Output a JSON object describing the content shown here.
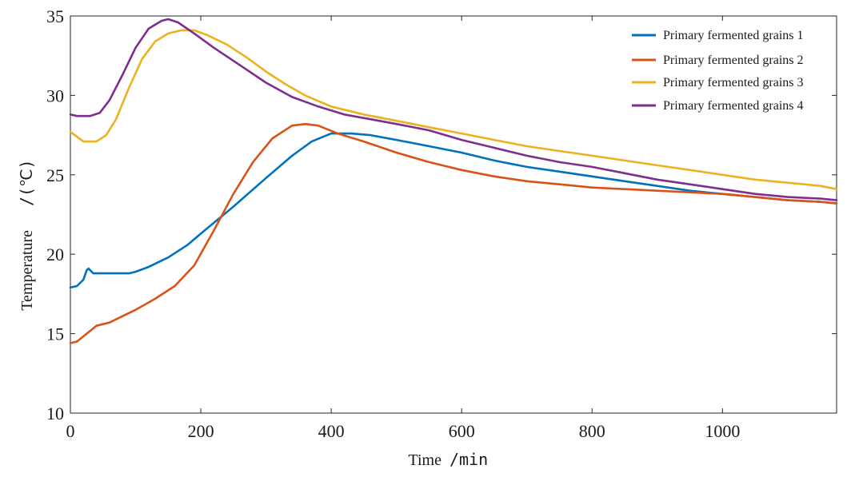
{
  "chart_data": {
    "type": "line",
    "title": "",
    "xlabel": "Time",
    "xunit": "/min",
    "ylabel": "Temperature",
    "yunit": "/(℃)",
    "xlim": [
      0,
      1175
    ],
    "ylim": [
      10,
      35
    ],
    "xticks": [
      0,
      200,
      400,
      600,
      800,
      1000
    ],
    "yticks": [
      10,
      15,
      20,
      25,
      30,
      35
    ],
    "grid": false,
    "legend_position": "top-right",
    "series": [
      {
        "name": "Primary fermented grains 1",
        "color": "#0072BD",
        "points": [
          [
            0,
            17.9
          ],
          [
            10,
            18.0
          ],
          [
            20,
            18.4
          ],
          [
            25,
            19.0
          ],
          [
            28,
            19.1
          ],
          [
            35,
            18.8
          ],
          [
            60,
            18.8
          ],
          [
            90,
            18.8
          ],
          [
            100,
            18.9
          ],
          [
            120,
            19.2
          ],
          [
            150,
            19.8
          ],
          [
            180,
            20.6
          ],
          [
            200,
            21.3
          ],
          [
            250,
            23.0
          ],
          [
            300,
            24.8
          ],
          [
            340,
            26.2
          ],
          [
            370,
            27.1
          ],
          [
            400,
            27.6
          ],
          [
            430,
            27.6
          ],
          [
            460,
            27.5
          ],
          [
            500,
            27.2
          ],
          [
            550,
            26.8
          ],
          [
            600,
            26.4
          ],
          [
            650,
            25.9
          ],
          [
            700,
            25.5
          ],
          [
            750,
            25.2
          ],
          [
            800,
            24.9
          ],
          [
            850,
            24.6
          ],
          [
            900,
            24.3
          ],
          [
            950,
            24.0
          ],
          [
            1000,
            23.8
          ],
          [
            1050,
            23.6
          ],
          [
            1100,
            23.4
          ],
          [
            1150,
            23.3
          ],
          [
            1175,
            23.2
          ]
        ]
      },
      {
        "name": "Primary fermented grains 2",
        "color": "#D95319",
        "points": [
          [
            0,
            14.4
          ],
          [
            10,
            14.5
          ],
          [
            25,
            15.0
          ],
          [
            40,
            15.5
          ],
          [
            60,
            15.7
          ],
          [
            80,
            16.1
          ],
          [
            100,
            16.5
          ],
          [
            130,
            17.2
          ],
          [
            160,
            18.0
          ],
          [
            190,
            19.3
          ],
          [
            220,
            21.5
          ],
          [
            250,
            23.8
          ],
          [
            280,
            25.8
          ],
          [
            310,
            27.3
          ],
          [
            340,
            28.1
          ],
          [
            360,
            28.2
          ],
          [
            380,
            28.1
          ],
          [
            410,
            27.6
          ],
          [
            450,
            27.1
          ],
          [
            500,
            26.4
          ],
          [
            550,
            25.8
          ],
          [
            600,
            25.3
          ],
          [
            650,
            24.9
          ],
          [
            700,
            24.6
          ],
          [
            750,
            24.4
          ],
          [
            800,
            24.2
          ],
          [
            850,
            24.1
          ],
          [
            900,
            24.0
          ],
          [
            950,
            23.9
          ],
          [
            1000,
            23.8
          ],
          [
            1050,
            23.6
          ],
          [
            1100,
            23.4
          ],
          [
            1150,
            23.3
          ],
          [
            1175,
            23.2
          ]
        ]
      },
      {
        "name": "Primary fermented grains 3",
        "color": "#EDB120",
        "points": [
          [
            0,
            27.7
          ],
          [
            10,
            27.4
          ],
          [
            20,
            27.1
          ],
          [
            40,
            27.1
          ],
          [
            55,
            27.5
          ],
          [
            70,
            28.5
          ],
          [
            90,
            30.5
          ],
          [
            110,
            32.3
          ],
          [
            130,
            33.4
          ],
          [
            150,
            33.9
          ],
          [
            170,
            34.1
          ],
          [
            190,
            34.1
          ],
          [
            210,
            33.8
          ],
          [
            240,
            33.2
          ],
          [
            270,
            32.4
          ],
          [
            300,
            31.5
          ],
          [
            330,
            30.7
          ],
          [
            360,
            30.0
          ],
          [
            400,
            29.3
          ],
          [
            450,
            28.8
          ],
          [
            500,
            28.4
          ],
          [
            550,
            28.0
          ],
          [
            600,
            27.6
          ],
          [
            650,
            27.2
          ],
          [
            700,
            26.8
          ],
          [
            750,
            26.5
          ],
          [
            800,
            26.2
          ],
          [
            850,
            25.9
          ],
          [
            900,
            25.6
          ],
          [
            950,
            25.3
          ],
          [
            1000,
            25.0
          ],
          [
            1050,
            24.7
          ],
          [
            1100,
            24.5
          ],
          [
            1150,
            24.3
          ],
          [
            1175,
            24.1
          ]
        ]
      },
      {
        "name": "Primary fermented grains 4",
        "color": "#7E2F8E",
        "points": [
          [
            0,
            28.8
          ],
          [
            10,
            28.7
          ],
          [
            30,
            28.7
          ],
          [
            45,
            28.9
          ],
          [
            60,
            29.7
          ],
          [
            80,
            31.3
          ],
          [
            100,
            33.0
          ],
          [
            120,
            34.2
          ],
          [
            140,
            34.7
          ],
          [
            150,
            34.8
          ],
          [
            165,
            34.6
          ],
          [
            190,
            33.9
          ],
          [
            220,
            33.0
          ],
          [
            260,
            31.9
          ],
          [
            300,
            30.8
          ],
          [
            340,
            29.9
          ],
          [
            380,
            29.3
          ],
          [
            420,
            28.8
          ],
          [
            460,
            28.5
          ],
          [
            500,
            28.2
          ],
          [
            550,
            27.8
          ],
          [
            600,
            27.2
          ],
          [
            650,
            26.7
          ],
          [
            700,
            26.2
          ],
          [
            750,
            25.8
          ],
          [
            800,
            25.5
          ],
          [
            850,
            25.1
          ],
          [
            900,
            24.7
          ],
          [
            950,
            24.4
          ],
          [
            1000,
            24.1
          ],
          [
            1050,
            23.8
          ],
          [
            1100,
            23.6
          ],
          [
            1150,
            23.5
          ],
          [
            1175,
            23.4
          ]
        ]
      }
    ]
  }
}
